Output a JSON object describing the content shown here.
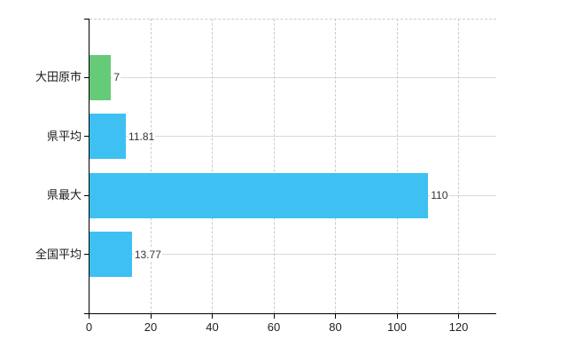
{
  "chart_data": {
    "type": "bar",
    "orientation": "horizontal",
    "title": "",
    "categories": [
      "大田原市",
      "県平均",
      "県最大",
      "全国平均"
    ],
    "values": [
      7,
      11.81,
      110,
      13.77
    ],
    "value_labels": [
      "7",
      "11.81",
      "110",
      "13.77"
    ],
    "series": [
      {
        "name": "value",
        "values": [
          7,
          11.81,
          110,
          13.77
        ]
      }
    ],
    "bar_colors": [
      "#66CB78",
      "#3EC1F2",
      "#3EC1F2",
      "#3EC1F2"
    ],
    "x_ticks": [
      "0",
      "20",
      "40",
      "60",
      "80",
      "100",
      "120"
    ],
    "x_tick_values": [
      0,
      20,
      40,
      60,
      80,
      100,
      120
    ],
    "xlim": [
      0,
      132
    ],
    "xlabel": "",
    "ylabel": "",
    "legend": "none",
    "grid": {
      "vertical": "dashed",
      "horizontal_category_lines": true,
      "top_border": "dashed"
    },
    "colors": {
      "background": "#ffffff",
      "axis": "#000000",
      "grid_vertical": "#cccccc",
      "grid_horizontal": "#d9d9d9",
      "category_text": "#1a1a1a",
      "value_text": "#333333",
      "tick_text": "#222222"
    }
  }
}
